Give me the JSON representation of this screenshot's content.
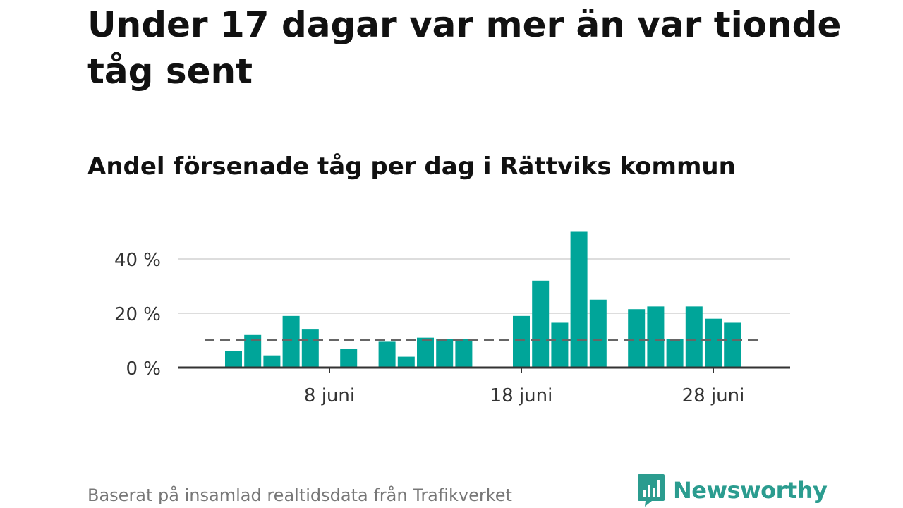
{
  "title": "Under 17 dagar var mer än var tionde tåg sent",
  "subtitle": "Andel försenade tåg per dag i Rättviks kommun",
  "source": "Baserat på insamlad realtidsdata från Trafikverket",
  "brand": {
    "name": "Newsworthy",
    "icon": "newsworthy-logo-icon"
  },
  "colors": {
    "bar": "#00a599",
    "reference": "#666666",
    "grid": "#dddddd",
    "axis": "#333333",
    "brand": "#2b9c8f",
    "text": "#111111",
    "muted": "#777777"
  },
  "chart_data": {
    "type": "bar",
    "x_unit": "day of June",
    "x": [
      3,
      4,
      5,
      6,
      7,
      8,
      9,
      10,
      11,
      12,
      13,
      14,
      15,
      16,
      17,
      18,
      19,
      20,
      21,
      22,
      23,
      24,
      25,
      26,
      27,
      28,
      29
    ],
    "values": [
      6,
      12,
      4.5,
      19,
      14,
      0,
      7,
      0,
      9.5,
      4,
      11,
      10.5,
      10.5,
      0,
      0,
      19,
      32,
      16.5,
      50,
      25,
      0,
      21.5,
      22.5,
      10.5,
      22.5,
      18,
      16.5
    ],
    "y_unit": "%",
    "ylim": [
      0,
      50
    ],
    "y_ticks": [
      0,
      20,
      40
    ],
    "y_tick_labels": [
      "0 %",
      "20 %",
      "40 %"
    ],
    "x_ticks": [
      8,
      18,
      28
    ],
    "x_tick_labels": [
      "8 juni",
      "18 juni",
      "28 juni"
    ],
    "reference_line": 10,
    "grid": true,
    "legend": "none"
  }
}
